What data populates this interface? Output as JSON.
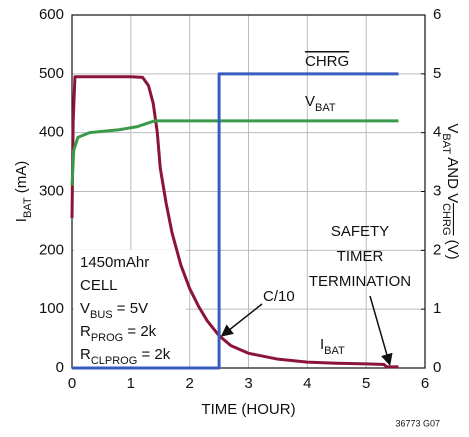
{
  "chart_data": {
    "type": "line",
    "xlabel": [
      {
        "t": "TIME (HOUR)"
      }
    ],
    "ylabel": [
      {
        "t": "I"
      },
      {
        "t": "BAT",
        "sub": true
      },
      {
        "t": " (mA)"
      }
    ],
    "y2label": [
      {
        "t": "V"
      },
      {
        "t": "BAT",
        "sub": true
      },
      {
        "t": " AND V"
      },
      {
        "t": "CHRG",
        "sub": true,
        "over": true
      },
      {
        "t": " (V)"
      }
    ],
    "xlim": [
      0,
      6
    ],
    "xticks": [
      0,
      1,
      2,
      3,
      4,
      5,
      6
    ],
    "ylim": [
      0,
      600
    ],
    "yticks": [
      0,
      100,
      200,
      300,
      400,
      500,
      600
    ],
    "y2lim": [
      0,
      6
    ],
    "y2ticks": [
      0,
      1,
      2,
      3,
      4,
      5,
      6
    ],
    "grid": true,
    "series": [
      {
        "name": [
          {
            "t": "I"
          },
          {
            "t": "BAT",
            "sub": true
          }
        ],
        "color": "#8b1538",
        "axis": "y",
        "x": [
          0,
          0.02,
          0.05,
          0.1,
          0.5,
          1.0,
          1.2,
          1.3,
          1.38,
          1.45,
          1.5,
          1.6,
          1.7,
          1.85,
          2.0,
          2.15,
          2.3,
          2.5,
          2.7,
          3.0,
          3.5,
          4.0,
          4.5,
          5.0,
          5.3,
          5.35,
          5.55
        ],
        "values": [
          255,
          420,
          495,
          495,
          495,
          495,
          494,
          480,
          450,
          400,
          340,
          280,
          230,
          175,
          135,
          105,
          80,
          55,
          38,
          25,
          15,
          10,
          8,
          7,
          6,
          2,
          2
        ]
      },
      {
        "name": [
          {
            "t": "V"
          },
          {
            "t": "BAT",
            "sub": true
          }
        ],
        "color": "#3a9a4a",
        "axis": "y2",
        "x": [
          0,
          0.03,
          0.1,
          0.3,
          0.8,
          1.1,
          1.4,
          2.0,
          3.0,
          4.0,
          5.0,
          5.55
        ],
        "values": [
          3.1,
          3.7,
          3.92,
          4.0,
          4.05,
          4.1,
          4.2,
          4.2,
          4.2,
          4.2,
          4.2,
          4.2
        ]
      },
      {
        "name": [
          {
            "t": "CHRG",
            "over": true
          }
        ],
        "color": "#3a5bbf",
        "axis": "y2",
        "x": [
          0,
          2.5,
          2.5,
          5.55
        ],
        "values": [
          0,
          0,
          5,
          5
        ]
      }
    ],
    "annotations": {
      "cell": [
        [
          {
            "t": "1450mAhr"
          }
        ],
        [
          {
            "t": "CELL"
          }
        ],
        [
          {
            "t": "V"
          },
          {
            "t": "BUS",
            "sub": true
          },
          {
            "t": " = 5V"
          }
        ],
        [
          {
            "t": "R"
          },
          {
            "t": "PROG",
            "sub": true
          },
          {
            "t": " = 2k"
          }
        ],
        [
          {
            "t": "R"
          },
          {
            "t": "CLPROG",
            "sub": true
          },
          {
            "t": " = 2k"
          }
        ]
      ],
      "c10": "C/10",
      "safety": [
        "SAFETY",
        "TIMER",
        "TERMINATION"
      ],
      "code": "36773 G07"
    }
  }
}
